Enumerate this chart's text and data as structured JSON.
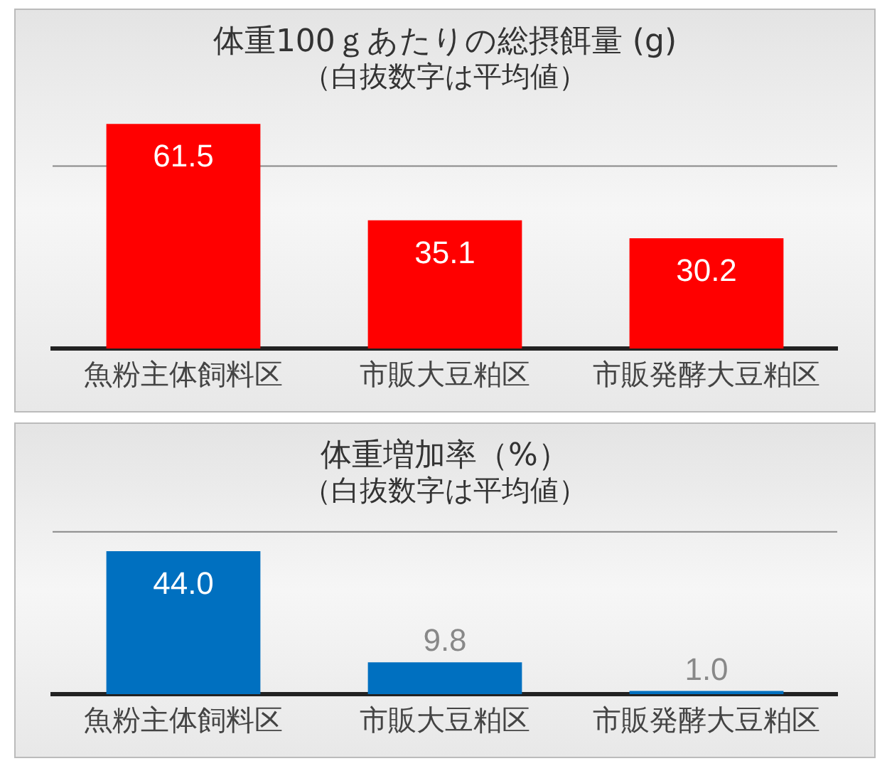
{
  "chart_data": [
    {
      "type": "bar",
      "title": "体重100ｇあたりの総摂餌量 (g)",
      "subtitle": "（白抜数字は平均値）",
      "categories": [
        "魚粉主体飼料区",
        "市販大豆粕区",
        "市販発酵大豆粕区"
      ],
      "values": [
        61.5,
        35.1,
        30.2
      ],
      "value_labels": [
        "61.5",
        "35.1",
        "30.2"
      ],
      "color": "#ff0000",
      "ref_lines": [
        {
          "axis": "y",
          "value": 50
        }
      ]
    },
    {
      "type": "bar",
      "title": "体重増加率（%）",
      "subtitle": "（白抜数字は平均値）",
      "categories": [
        "魚粉主体飼料区",
        "市販大豆粕区",
        "市販発酵大豆粕区"
      ],
      "values": [
        44.0,
        9.8,
        1.0
      ],
      "value_labels": [
        "44.0",
        "9.8",
        "1.0"
      ],
      "color": "#0070c0",
      "ref_lines": [
        {
          "axis": "y",
          "value": 50
        }
      ]
    }
  ]
}
